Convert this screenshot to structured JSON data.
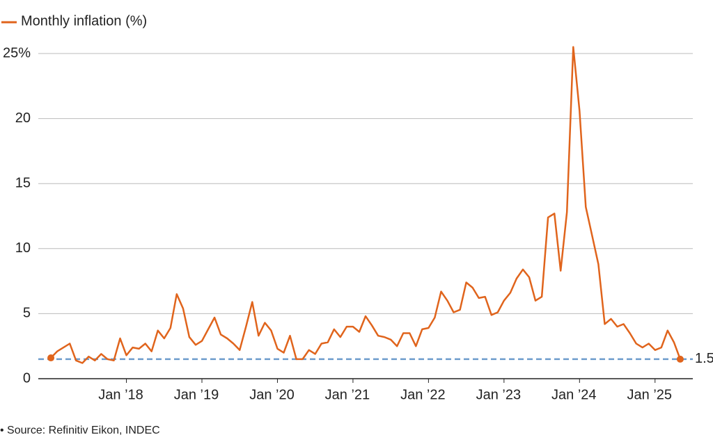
{
  "chart_data": {
    "type": "line",
    "legend_label": "Monthly inflation (%)",
    "source": "• Source: Refinitiv Eikon, INDEC",
    "x_start": "2017-01",
    "series": [
      {
        "name": "Monthly inflation (%)",
        "color": "#e0641c",
        "values": [
          1.6,
          2.1,
          2.4,
          2.7,
          1.4,
          1.2,
          1.7,
          1.4,
          1.9,
          1.5,
          1.4,
          3.1,
          1.8,
          2.4,
          2.3,
          2.7,
          2.1,
          3.7,
          3.1,
          3.9,
          6.5,
          5.4,
          3.2,
          2.6,
          2.9,
          3.8,
          4.7,
          3.4,
          3.1,
          2.7,
          2.2,
          4.0,
          5.9,
          3.3,
          4.3,
          3.7,
          2.3,
          2.0,
          3.3,
          1.5,
          1.5,
          2.2,
          1.9,
          2.7,
          2.8,
          3.8,
          3.2,
          4.0,
          4.0,
          3.6,
          4.8,
          4.1,
          3.3,
          3.2,
          3.0,
          2.5,
          3.5,
          3.5,
          2.5,
          3.8,
          3.9,
          4.7,
          6.7,
          6.0,
          5.1,
          5.3,
          7.4,
          7.0,
          6.2,
          6.3,
          4.9,
          5.1,
          6.0,
          6.6,
          7.7,
          8.4,
          7.8,
          6.0,
          6.3,
          12.4,
          12.7,
          8.3,
          12.8,
          25.5,
          20.6,
          13.2,
          11.0,
          8.8,
          4.2,
          4.6,
          4.0,
          4.2,
          3.5,
          2.7,
          2.4,
          2.7,
          2.2,
          2.4,
          3.7,
          2.8,
          1.5
        ]
      }
    ],
    "xlim": [
      "2016-11",
      "2025-07"
    ],
    "xticks": [
      {
        "value": "2018-01",
        "label": "Jan ’18"
      },
      {
        "value": "2019-01",
        "label": "Jan ’19"
      },
      {
        "value": "2020-01",
        "label": "Jan ’20"
      },
      {
        "value": "2021-01",
        "label": "Jan ’21"
      },
      {
        "value": "2022-01",
        "label": "Jan ’22"
      },
      {
        "value": "2023-01",
        "label": "Jan ’23"
      },
      {
        "value": "2024-01",
        "label": "Jan ’24"
      },
      {
        "value": "2025-01",
        "label": "Jan ’25"
      }
    ],
    "ylim": [
      0,
      25
    ],
    "yticks": [
      0,
      5,
      10,
      15,
      20,
      {
        "value": 25,
        "label": "25%"
      }
    ],
    "grid": true,
    "reference_line": 1.5,
    "reference_color": "#6d9ccc"
  }
}
